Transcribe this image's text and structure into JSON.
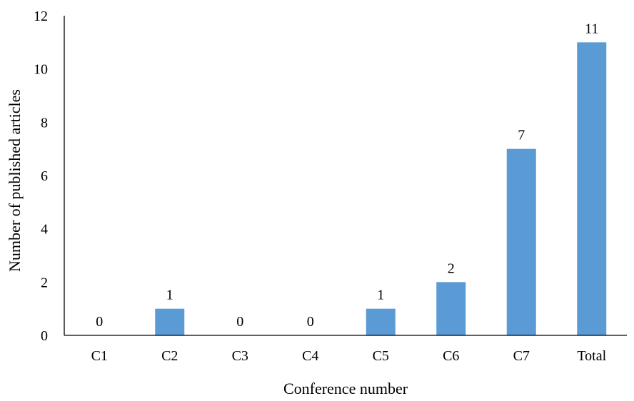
{
  "chart_data": {
    "type": "bar",
    "categories": [
      "C1",
      "C2",
      "C3",
      "C4",
      "C5",
      "C6",
      "C7",
      "Total"
    ],
    "values": [
      0,
      1,
      0,
      0,
      1,
      2,
      7,
      11
    ],
    "data_labels": [
      "0",
      "1",
      "0",
      "0",
      "1",
      "2",
      "7",
      "11"
    ],
    "xlabel": "Conference number",
    "ylabel": "Number of published articles",
    "ylim": [
      0,
      12
    ],
    "yticks": [
      0,
      2,
      4,
      6,
      8,
      10,
      12
    ],
    "ytick_labels": [
      "0",
      "2",
      "4",
      "6",
      "8",
      "10",
      "12"
    ],
    "grid": false,
    "legend": "none",
    "bar_color": "#5b9bd5",
    "axis_color": "#000000"
  }
}
